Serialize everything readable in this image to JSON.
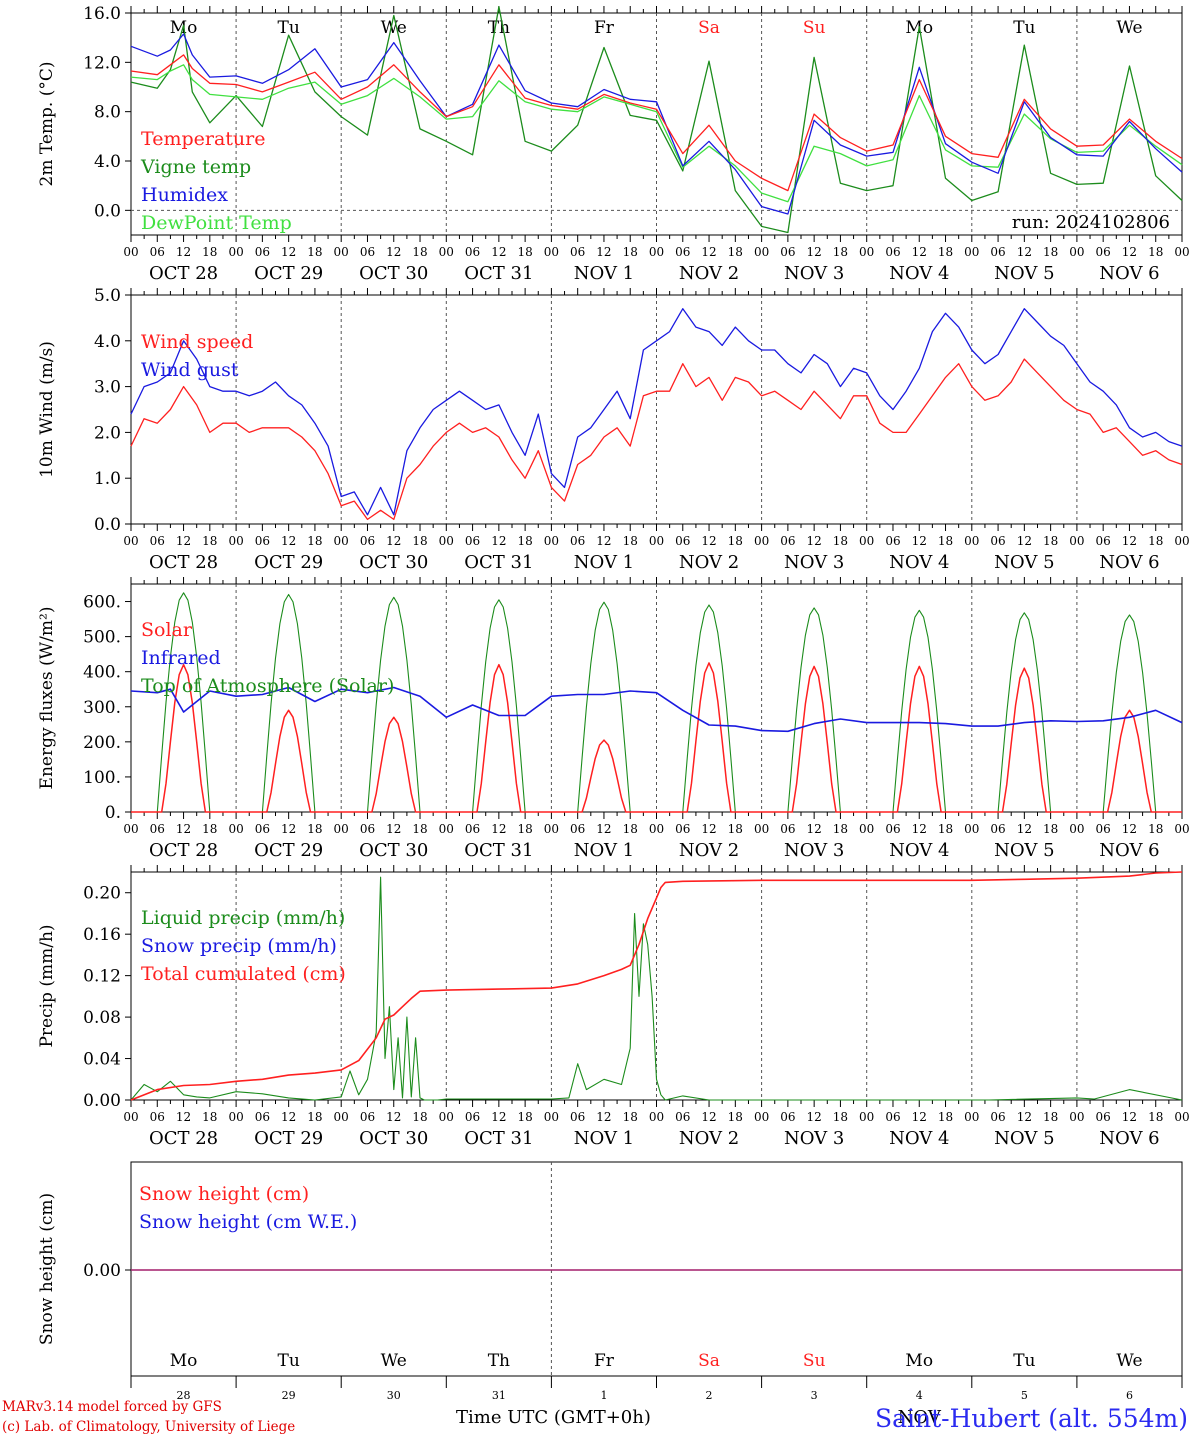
{
  "chart_data": [
    {
      "type": "line",
      "ylabel": "2m Temp. (°C)",
      "ylim": [
        -2,
        16
      ],
      "yticks": [
        "16.0",
        "12.0",
        "8.0",
        "4.0",
        "0.0"
      ],
      "ytick_values": [
        16,
        12,
        8,
        4,
        0
      ],
      "x_unit": "hours since OCT 28 00 UTC",
      "annotation": "run: 2024102806",
      "x": [
        0,
        6,
        9,
        12,
        14,
        18,
        24,
        30,
        36,
        42,
        48,
        54,
        60,
        66,
        72,
        78,
        84,
        90,
        96,
        102,
        108,
        114,
        120,
        126,
        132,
        138,
        144,
        150,
        156,
        162,
        168,
        174,
        180,
        186,
        192,
        198,
        204,
        210,
        216,
        222,
        228,
        234,
        240
      ],
      "series": [
        {
          "name": "Temperature",
          "color": "#ff2020",
          "values": [
            11.3,
            11.0,
            11.8,
            12.6,
            11.5,
            10.3,
            10.2,
            9.6,
            10.4,
            11.2,
            9.0,
            10.0,
            11.8,
            9.6,
            7.6,
            8.4,
            11.8,
            9.1,
            8.5,
            8.2,
            9.4,
            8.7,
            8.2,
            4.6,
            6.9,
            4.0,
            2.6,
            1.6,
            7.8,
            5.9,
            4.8,
            5.3,
            10.6,
            6.0,
            4.6,
            4.3,
            9.0,
            6.6,
            5.2,
            5.3,
            7.4,
            5.6,
            4.2
          ]
        },
        {
          "name": "Vigne temp",
          "color": "#1c8c1c",
          "values": [
            10.4,
            9.9,
            11.4,
            15.0,
            9.6,
            7.1,
            9.3,
            6.8,
            14.2,
            9.6,
            7.6,
            6.1,
            15.8,
            6.6,
            5.6,
            4.5,
            16.5,
            5.6,
            4.8,
            6.9,
            13.2,
            7.7,
            7.3,
            3.2,
            12.1,
            1.6,
            -1.3,
            -1.8,
            12.4,
            2.2,
            1.6,
            2.0,
            14.9,
            2.6,
            0.8,
            1.5,
            13.4,
            3.0,
            2.1,
            2.2,
            11.7,
            2.8,
            0.8
          ]
        },
        {
          "name": "Humidex",
          "color": "#1a1ae0",
          "values": [
            13.3,
            12.5,
            13.0,
            14.3,
            12.6,
            10.8,
            10.9,
            10.3,
            11.4,
            13.1,
            10.0,
            10.6,
            13.6,
            10.5,
            7.6,
            8.6,
            13.4,
            9.7,
            8.7,
            8.4,
            9.8,
            9.0,
            8.8,
            3.6,
            5.6,
            3.3,
            0.3,
            -0.3,
            7.3,
            5.3,
            4.4,
            4.7,
            11.6,
            5.4,
            3.9,
            3.0,
            8.8,
            5.9,
            4.5,
            4.4,
            7.2,
            5.0,
            3.1
          ]
        },
        {
          "name": "DewPoint Temp",
          "color": "#40e040",
          "values": [
            10.8,
            10.6,
            11.3,
            11.8,
            10.6,
            9.4,
            9.2,
            9.0,
            9.9,
            10.4,
            8.6,
            9.3,
            10.7,
            9.2,
            7.4,
            7.6,
            10.5,
            8.8,
            8.2,
            8.0,
            9.2,
            8.6,
            8.0,
            3.5,
            5.2,
            3.6,
            1.4,
            0.7,
            5.2,
            4.6,
            3.6,
            4.1,
            9.3,
            4.9,
            3.6,
            3.5,
            7.8,
            5.8,
            4.7,
            4.8,
            6.9,
            5.2,
            3.7
          ]
        }
      ]
    },
    {
      "type": "line",
      "ylabel": "10m Wind (m/s)",
      "ylim": [
        0,
        5
      ],
      "yticks": [
        "5.0",
        "4.0",
        "3.0",
        "2.0",
        "1.0",
        "0.0"
      ],
      "ytick_values": [
        5,
        4,
        3,
        2,
        1,
        0
      ],
      "x": [
        0,
        3,
        6,
        9,
        12,
        15,
        18,
        21,
        24,
        27,
        30,
        33,
        36,
        39,
        42,
        45,
        48,
        51,
        54,
        57,
        60,
        63,
        66,
        69,
        72,
        75,
        78,
        81,
        84,
        87,
        90,
        93,
        96,
        99,
        102,
        105,
        108,
        111,
        114,
        117,
        120,
        123,
        126,
        129,
        132,
        135,
        138,
        141,
        144,
        147,
        150,
        153,
        156,
        159,
        162,
        165,
        168,
        171,
        174,
        177,
        180,
        183,
        186,
        189,
        192,
        195,
        198,
        201,
        204,
        207,
        210,
        213,
        216,
        219,
        222,
        225,
        228,
        231,
        234,
        237,
        240
      ],
      "series": [
        {
          "name": "Wind speed",
          "color": "#ff2020",
          "values": [
            1.7,
            2.3,
            2.2,
            2.5,
            3.0,
            2.6,
            2.0,
            2.2,
            2.2,
            2.0,
            2.1,
            2.1,
            2.1,
            1.9,
            1.6,
            1.1,
            0.4,
            0.5,
            0.1,
            0.3,
            0.1,
            1.0,
            1.3,
            1.7,
            2.0,
            2.2,
            2.0,
            2.1,
            1.9,
            1.4,
            1.0,
            1.6,
            0.8,
            0.5,
            1.3,
            1.5,
            1.9,
            2.1,
            1.7,
            2.8,
            2.9,
            2.9,
            3.5,
            3.0,
            3.2,
            2.7,
            3.2,
            3.1,
            2.8,
            2.9,
            2.7,
            2.5,
            2.9,
            2.6,
            2.3,
            2.8,
            2.8,
            2.2,
            2.0,
            2.0,
            2.4,
            2.8,
            3.2,
            3.5,
            3.0,
            2.7,
            2.8,
            3.1,
            3.6,
            3.3,
            3.0,
            2.7,
            2.5,
            2.4,
            2.0,
            2.1,
            1.8,
            1.5,
            1.6,
            1.4,
            1.3
          ]
        },
        {
          "name": "Wind gust",
          "color": "#1a1ae0",
          "values": [
            2.4,
            3.0,
            3.1,
            3.3,
            4.0,
            3.6,
            3.0,
            2.9,
            2.9,
            2.8,
            2.9,
            3.1,
            2.8,
            2.6,
            2.2,
            1.7,
            0.6,
            0.7,
            0.2,
            0.8,
            0.2,
            1.6,
            2.1,
            2.5,
            2.7,
            2.9,
            2.7,
            2.5,
            2.6,
            2.0,
            1.5,
            2.4,
            1.1,
            0.8,
            1.9,
            2.1,
            2.5,
            2.9,
            2.3,
            3.8,
            4.0,
            4.2,
            4.7,
            4.3,
            4.2,
            3.9,
            4.3,
            4.0,
            3.8,
            3.8,
            3.5,
            3.3,
            3.7,
            3.5,
            3.0,
            3.4,
            3.3,
            2.8,
            2.5,
            2.9,
            3.4,
            4.2,
            4.6,
            4.3,
            3.8,
            3.5,
            3.7,
            4.2,
            4.7,
            4.4,
            4.1,
            3.9,
            3.5,
            3.1,
            2.9,
            2.6,
            2.1,
            1.9,
            2.0,
            1.8,
            1.7
          ]
        }
      ]
    },
    {
      "type": "line",
      "ylabel": "Energy fluxes (W/m²)",
      "ylim": [
        0,
        650
      ],
      "yticks": [
        "600.",
        "500.",
        "400.",
        "300.",
        "200.",
        "100.",
        "0."
      ],
      "ytick_values": [
        600,
        500,
        400,
        300,
        200,
        100,
        0
      ],
      "toa_peaks": [
        625,
        620,
        612,
        605,
        598,
        590,
        582,
        575,
        568,
        562
      ],
      "solar_peaks": [
        420,
        290,
        270,
        420,
        205,
        425,
        415,
        415,
        410,
        290
      ],
      "series": [
        {
          "name": "Solar",
          "color": "#ff2020"
        },
        {
          "name": "Infrared",
          "color": "#1a1ae0",
          "x": [
            0,
            6,
            9,
            12,
            18,
            24,
            30,
            36,
            42,
            48,
            54,
            60,
            66,
            72,
            78,
            84,
            90,
            96,
            102,
            108,
            114,
            120,
            126,
            132,
            138,
            144,
            150,
            156,
            162,
            168,
            174,
            180,
            186,
            192,
            198,
            204,
            210,
            216,
            222,
            228,
            234,
            240
          ],
          "values": [
            345,
            340,
            350,
            285,
            345,
            330,
            335,
            355,
            315,
            350,
            340,
            355,
            330,
            270,
            305,
            275,
            275,
            330,
            335,
            335,
            345,
            340,
            290,
            248,
            245,
            232,
            230,
            252,
            265,
            255,
            255,
            255,
            252,
            245,
            245,
            255,
            260,
            258,
            260,
            270,
            290,
            255
          ]
        },
        {
          "name": "Top of Atmosphere (Solar)",
          "color": "#1c8c1c"
        }
      ]
    },
    {
      "type": "line",
      "ylabel": "Precip (mm/h)",
      "ylim": [
        0,
        0.22
      ],
      "yticks": [
        "0.20",
        "0.16",
        "0.12",
        "0.08",
        "0.04",
        "0.00"
      ],
      "ytick_values": [
        0.2,
        0.16,
        0.12,
        0.08,
        0.04,
        0.0
      ],
      "series": [
        {
          "name": "Liquid precip (mm/h)",
          "color": "#1c8c1c",
          "x": [
            0,
            3,
            6,
            9,
            12,
            15,
            18,
            24,
            30,
            36,
            42,
            48,
            50,
            52,
            54,
            56,
            57,
            58,
            59,
            60,
            61,
            62,
            63,
            64,
            65,
            66,
            67,
            68,
            70,
            72,
            96,
            100,
            102,
            104,
            108,
            112,
            114,
            115,
            116,
            117,
            118,
            119,
            120,
            121,
            122,
            126,
            132,
            168,
            196,
            216,
            220,
            228,
            240
          ],
          "values": [
            0,
            0.015,
            0.008,
            0.018,
            0.005,
            0.003,
            0.002,
            0.008,
            0.006,
            0.002,
            0,
            0.003,
            0.028,
            0.005,
            0.02,
            0.065,
            0.215,
            0.04,
            0.09,
            0.01,
            0.06,
            0.002,
            0.08,
            0.003,
            0.06,
            0.002,
            0,
            0,
            0,
            0.001,
            0.001,
            0.002,
            0.035,
            0.01,
            0.02,
            0.015,
            0.05,
            0.18,
            0.1,
            0.17,
            0.15,
            0.1,
            0.02,
            0.005,
            0,
            0.004,
            0,
            0,
            0,
            0.002,
            0.001,
            0.01,
            0
          ]
        },
        {
          "name": "Snow precip (mm/h)",
          "color": "#1a1ae0",
          "values": []
        },
        {
          "name": "Total cumulated (cm)",
          "color": "#ff2020",
          "x": [
            0,
            6,
            12,
            18,
            24,
            30,
            36,
            42,
            48,
            52,
            56,
            58,
            60,
            62,
            64,
            66,
            72,
            84,
            96,
            102,
            108,
            112,
            114,
            116,
            118,
            120,
            121,
            122,
            126,
            144,
            168,
            192,
            204,
            216,
            228,
            234,
            240
          ],
          "values": [
            0,
            0.01,
            0.014,
            0.015,
            0.018,
            0.02,
            0.024,
            0.026,
            0.029,
            0.038,
            0.06,
            0.078,
            0.082,
            0.09,
            0.098,
            0.105,
            0.106,
            0.107,
            0.108,
            0.112,
            0.12,
            0.126,
            0.13,
            0.15,
            0.175,
            0.195,
            0.205,
            0.21,
            0.211,
            0.212,
            0.212,
            0.212,
            0.213,
            0.214,
            0.216,
            0.219,
            0.22
          ]
        }
      ]
    },
    {
      "type": "line",
      "ylabel": "Snow height (cm)",
      "ytick": "0.00",
      "series": [
        {
          "name": "Snow height (cm)",
          "color": "#ff2020",
          "values": [
            0,
            0
          ]
        },
        {
          "name": "Snow height (cm W.E.)",
          "color": "#1a1ae0",
          "values": [
            0,
            0
          ]
        }
      ]
    }
  ],
  "x_axis": {
    "hour_labels": [
      "00",
      "06",
      "12",
      "18"
    ],
    "date_labels": [
      "OCT 28",
      "OCT 29",
      "OCT 30",
      "OCT 31",
      "NOV  1",
      "NOV  2",
      "NOV  3",
      "NOV  4",
      "NOV  5",
      "NOV  6"
    ],
    "weekdays": [
      "Mo",
      "Tu",
      "We",
      "Th",
      "Fr",
      "Sa",
      "Su",
      "Mo",
      "Tu",
      "We"
    ],
    "weekend_color": "#ff2020",
    "weekend_flags": [
      false,
      false,
      false,
      false,
      false,
      true,
      true,
      false,
      false,
      false
    ],
    "bottom_days": [
      "28",
      "29",
      "30",
      "31",
      "1",
      "2",
      "3",
      "4",
      "5",
      "6"
    ],
    "bottom_month": "NOV",
    "title": "Time UTC (GMT+0h)"
  },
  "footer": {
    "model": "MARv3.14 model forced by GFS",
    "credit": "(c) Lab. of Climatology, University of Liege",
    "station": "Saint-Hubert (alt. 554m)"
  }
}
